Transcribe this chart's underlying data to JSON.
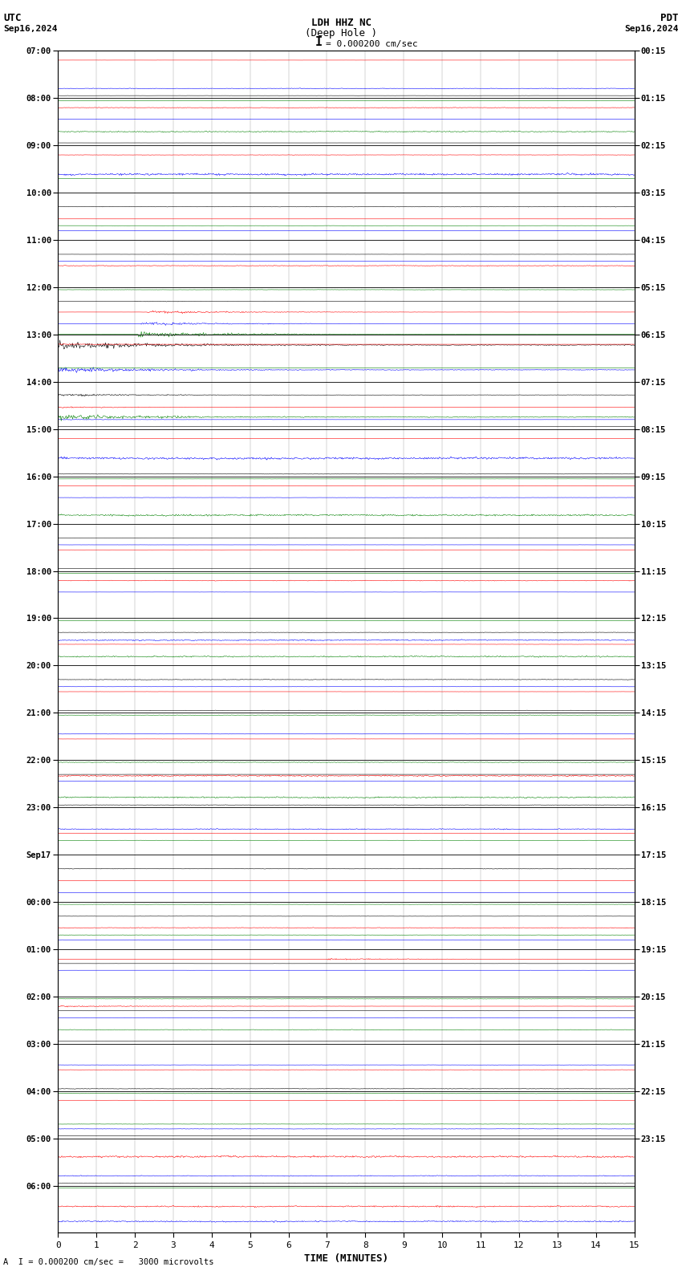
{
  "title_line1": "LDH HHZ NC",
  "title_line2": "(Deep Hole )",
  "scale_label": "I = 0.000200 cm/sec",
  "bottom_label": "A  I = 0.000200 cm/sec =   3000 microvolts",
  "utc_label": "UTC",
  "pdt_label": "PDT",
  "date_left": "Sep16,2024",
  "date_right": "Sep16,2024",
  "xlabel": "TIME (MINUTES)",
  "xlim": [
    0,
    15
  ],
  "xticks": [
    0,
    1,
    2,
    3,
    4,
    5,
    6,
    7,
    8,
    9,
    10,
    11,
    12,
    13,
    14,
    15
  ],
  "figure_width": 8.5,
  "figure_height": 15.84,
  "dpi": 100,
  "bg_color": "#ffffff",
  "trace_colors": [
    "black",
    "red",
    "blue",
    "green"
  ],
  "left_times": [
    "07:00",
    "08:00",
    "09:00",
    "10:00",
    "11:00",
    "12:00",
    "13:00",
    "14:00",
    "15:00",
    "16:00",
    "17:00",
    "18:00",
    "19:00",
    "20:00",
    "21:00",
    "22:00",
    "23:00",
    "Sep17",
    "00:00",
    "01:00",
    "02:00",
    "03:00",
    "04:00",
    "05:00",
    "06:00"
  ],
  "right_times": [
    "00:15",
    "01:15",
    "02:15",
    "03:15",
    "04:15",
    "05:15",
    "06:15",
    "07:15",
    "08:15",
    "09:15",
    "10:15",
    "11:15",
    "12:15",
    "13:15",
    "14:15",
    "15:15",
    "16:15",
    "17:15",
    "18:15",
    "19:15",
    "20:15",
    "21:15",
    "22:15",
    "23:15"
  ],
  "num_hour_blocks": 25,
  "traces_per_block": 4,
  "noise_amp": 0.018,
  "seed": 42,
  "earthquake_block": 5,
  "earthquake_minute": 2,
  "earthquake_amp_multiplier": 12.0,
  "aftershock_block": 5,
  "event2_block": 19,
  "event2_minute": 7,
  "event2_amp": 4.0
}
